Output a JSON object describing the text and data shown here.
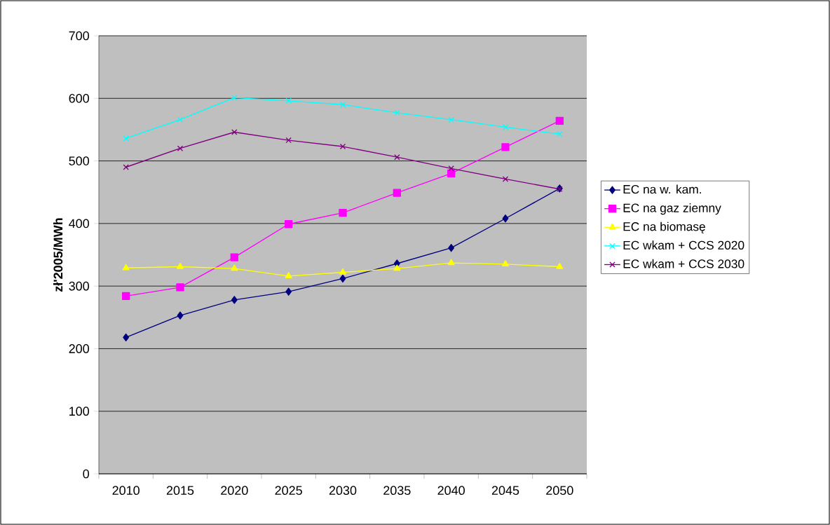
{
  "chart_data": {
    "type": "line",
    "ylabel": "zł'2005/MWh",
    "categories": [
      "2010",
      "2015",
      "2020",
      "2025",
      "2030",
      "2035",
      "2040",
      "2045",
      "2050"
    ],
    "series": [
      {
        "name": "EC na w. kam.",
        "color": "#000080",
        "marker": "diamond",
        "values": [
          218,
          253,
          278,
          291,
          312,
          336,
          361,
          408,
          456
        ]
      },
      {
        "name": "EC na gaz ziemny",
        "color": "#ff00ff",
        "marker": "square",
        "values": [
          284,
          298,
          346,
          399,
          417,
          449,
          480,
          522,
          564
        ]
      },
      {
        "name": "EC na biomasę",
        "color": "#ffff00",
        "marker": "triangle",
        "values": [
          329,
          331,
          328,
          316,
          322,
          328,
          337,
          335,
          331
        ]
      },
      {
        "name": "EC wkam + CCS 2020",
        "color": "#00ffff",
        "marker": "cross",
        "values": [
          536,
          566,
          601,
          596,
          590,
          577,
          566,
          554,
          543
        ]
      },
      {
        "name": "EC wkam + CCS 2030",
        "color": "#800080",
        "marker": "cross",
        "values": [
          490,
          520,
          546,
          533,
          523,
          506,
          488,
          471,
          455
        ]
      }
    ],
    "ylim": [
      0,
      700
    ],
    "yticks": [
      0,
      100,
      200,
      300,
      400,
      500,
      600,
      700
    ],
    "grid": "y",
    "legend": "right",
    "line_style": "solid"
  }
}
